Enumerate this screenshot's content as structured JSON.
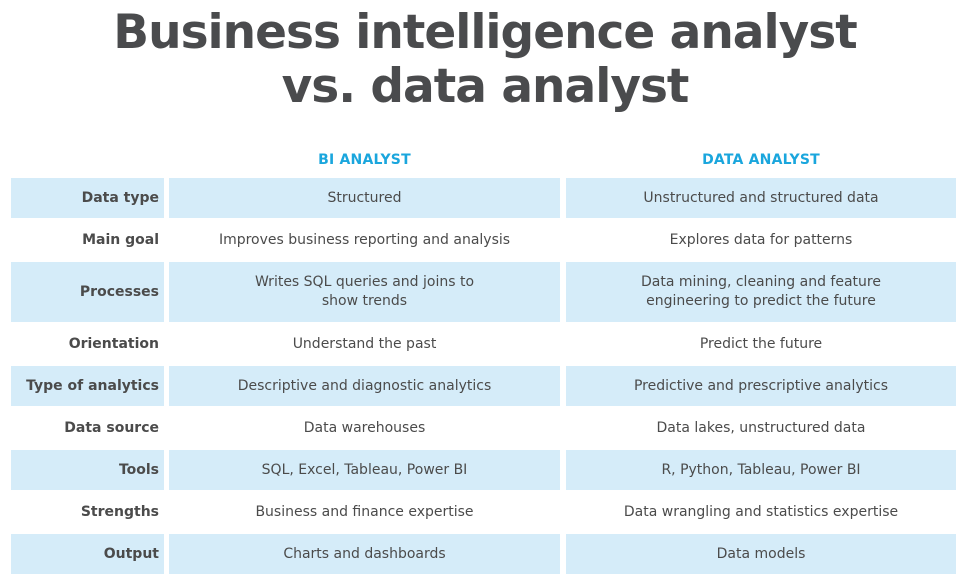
{
  "title": {
    "line1": "Business intelligence analyst",
    "line2": "vs. data analyst"
  },
  "columns": {
    "bi": "BI ANALYST",
    "da": "DATA ANALYST"
  },
  "colors": {
    "heading": "#1aa6dd",
    "shade": "#d5ecf9",
    "text": "#4b4b4b"
  },
  "rows": [
    {
      "label": "Data type",
      "bi": "Structured",
      "da": "Unstructured and structured data"
    },
    {
      "label": "Main goal",
      "bi": "Improves business reporting and analysis",
      "da": "Explores data for patterns"
    },
    {
      "label": "Processes",
      "bi": "Writes SQL queries and joins to\nshow trends",
      "da": "Data mining, cleaning and feature\nengineering to predict the future"
    },
    {
      "label": "Orientation",
      "bi": "Understand the past",
      "da": "Predict the future"
    },
    {
      "label": "Type of analytics",
      "bi": "Descriptive and diagnostic analytics",
      "da": "Predictive and prescriptive analytics"
    },
    {
      "label": "Data source",
      "bi": "Data warehouses",
      "da": "Data lakes, unstructured data"
    },
    {
      "label": "Tools",
      "bi": "SQL, Excel, Tableau, Power BI",
      "da": "R, Python, Tableau, Power BI"
    },
    {
      "label": "Strengths",
      "bi": "Business and finance expertise",
      "da": "Data wrangling and statistics expertise"
    },
    {
      "label": "Output",
      "bi": "Charts and dashboards",
      "da": "Data models"
    }
  ]
}
